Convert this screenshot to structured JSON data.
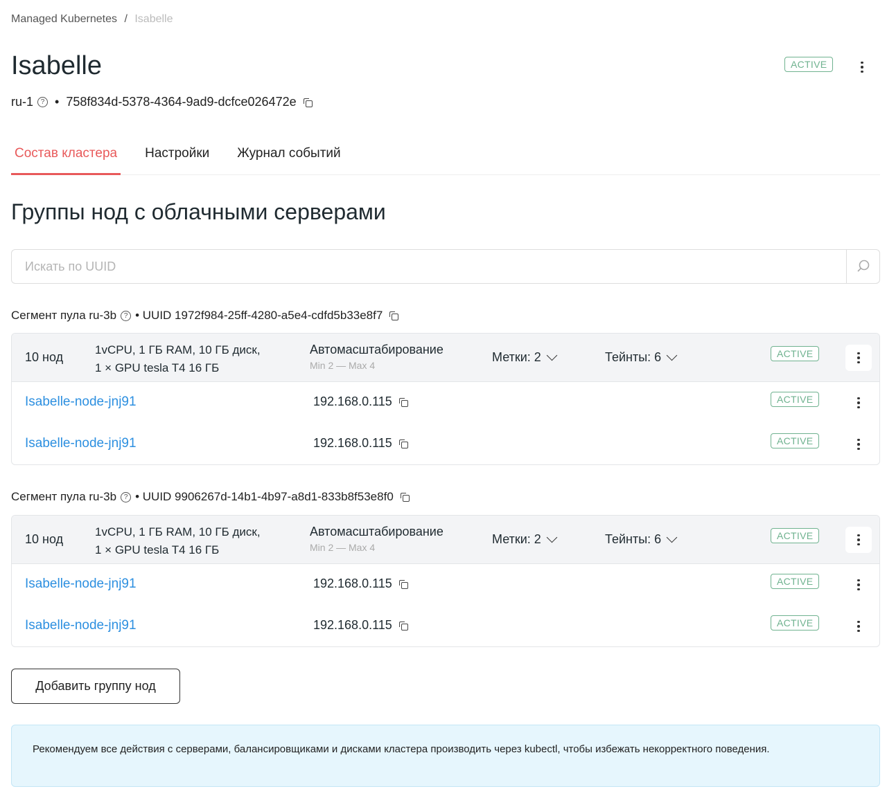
{
  "breadcrumb": {
    "parent": "Managed Kubernetes",
    "sep": "/",
    "current": "Isabelle"
  },
  "header": {
    "title": "Isabelle",
    "region": "ru-1",
    "help": "?",
    "dot": "•",
    "uuid": "758f834d-5378-4364-9ad9-dcfce026472e",
    "status": "ACTIVE"
  },
  "tabs": [
    {
      "label": "Состав кластера",
      "active": true
    },
    {
      "label": "Настройки"
    },
    {
      "label": "Журнал событий"
    }
  ],
  "section_title": "Группы нод с облачными серверами",
  "search": {
    "placeholder": "Искать по UUID",
    "value": ""
  },
  "groups": [
    {
      "segment": "Сегмент пула ru-3b",
      "help": "?",
      "uuid": "• UUID 1972f984-25ff-4280-a5e4-cdfd5b33e8f7",
      "count": "10 нод",
      "spec1": "1vCPU,  1 ГБ RAM, 10 ГБ  диск,",
      "spec2": "1 × GPU tesla T4 16  ГБ",
      "autoscale": "Автомасштабирование",
      "autoscale_range": "Min 2 — Max 4",
      "labels": "Метки: 2",
      "taints": "Тейнты: 6",
      "status": "ACTIVE",
      "nodes": [
        {
          "name": "Isabelle-node-jnj91",
          "ip": "192.168.0.115",
          "status": "ACTIVE"
        },
        {
          "name": "Isabelle-node-jnj91",
          "ip": "192.168.0.115",
          "status": "ACTIVE"
        }
      ]
    },
    {
      "segment": "Сегмент пула ru-3b",
      "help": "?",
      "uuid": "• UUID 9906267d-14b1-4b97-a8d1-833b8f53e8f0",
      "count": "10 нод",
      "spec1": "1vCPU,  1 ГБ RAM, 10 ГБ  диск,",
      "spec2": "1 × GPU tesla T4 16  ГБ",
      "autoscale": "Автомасштабирование",
      "autoscale_range": "Min 2 — Max 4",
      "labels": "Метки: 2",
      "taints": "Тейнты: 6",
      "status": "ACTIVE",
      "nodes": [
        {
          "name": "Isabelle-node-jnj91",
          "ip": "192.168.0.115",
          "status": "ACTIVE"
        },
        {
          "name": "Isabelle-node-jnj91",
          "ip": "192.168.0.115",
          "status": "ACTIVE"
        }
      ]
    }
  ],
  "add_group_label": "Добавить группу нод",
  "info": "Рекомендуем все действия с серверами, балансировщиками и дисками кластера производить через kubectl, чтобы избежать некорректного поведения.",
  "colors": {
    "accent": "#e8595a",
    "link": "#2c8fe0",
    "active": "#6fb28f",
    "info_bg": "#e6f6fd"
  }
}
